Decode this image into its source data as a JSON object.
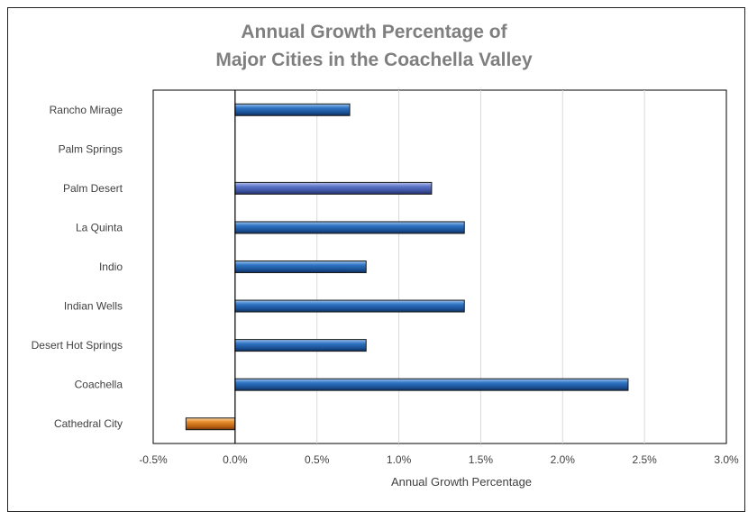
{
  "chart_data": {
    "type": "bar",
    "orientation": "horizontal",
    "title_lines": [
      "Annual Growth Percentage of",
      "Major Cities in the Coachella Valley"
    ],
    "xlabel": "Annual Growth Percentage",
    "ylabel": "",
    "xlim": [
      -0.5,
      3.0
    ],
    "x_ticks": [
      -0.5,
      0.0,
      0.5,
      1.0,
      1.5,
      2.0,
      2.5,
      3.0
    ],
    "x_tick_labels": [
      "-0.5%",
      "0.0%",
      "0.5%",
      "1.0%",
      "1.5%",
      "2.0%",
      "2.5%",
      "3.0%"
    ],
    "grid": "vertical",
    "categories": [
      "Rancho Mirage",
      "Palm Springs",
      "Palm Desert",
      "La Quinta",
      "Indio",
      "Indian Wells",
      "Desert Hot Springs",
      "Coachella",
      "Cathedral City"
    ],
    "values": [
      0.7,
      0.0,
      1.2,
      1.4,
      0.8,
      1.4,
      0.8,
      2.4,
      -0.3
    ],
    "colors": {
      "positive": "#1f5fa8",
      "highlight": "#4a63b5",
      "negative": "#d4761c",
      "grid": "#d9d9d9",
      "axis_line": "#000000"
    },
    "highlight_category": "Palm Desert"
  }
}
